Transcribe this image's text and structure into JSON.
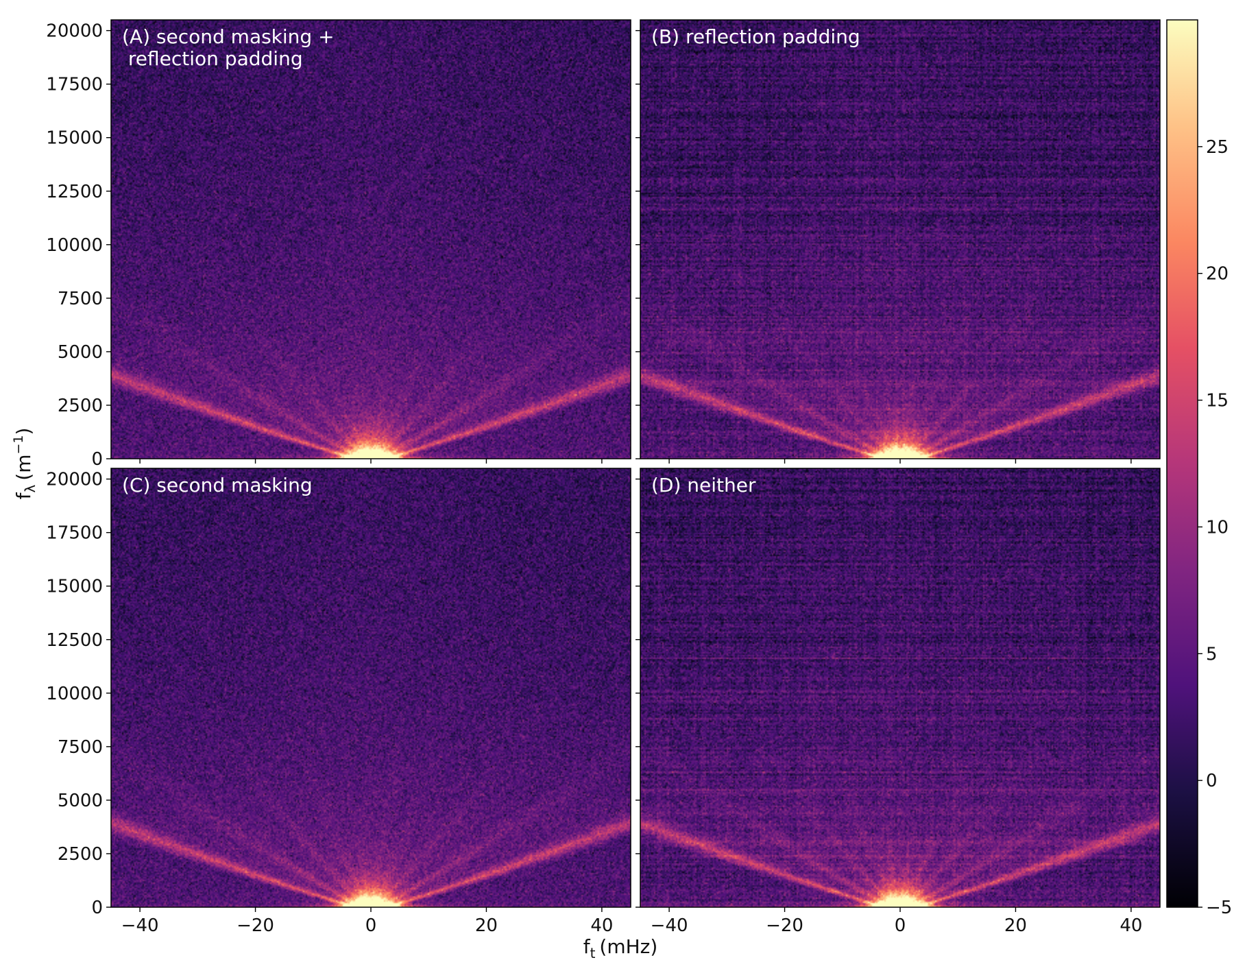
{
  "colors": {
    "background": "#ffffff",
    "panel_frame": "#000000",
    "panel_label_text": "#ffffff",
    "colormap": "magma"
  },
  "chart_data": {
    "type": "heatmap",
    "title": "",
    "xlabel": "f",
    "xlabel_sub": "t",
    "xlabel_unit": "(mHz)",
    "ylabel": "f",
    "ylabel_sub": "λ",
    "ylabel_unit": "(m",
    "ylabel_sup": "−1",
    "ylabel_close": ")",
    "xlim": [
      -45,
      45
    ],
    "ylim": [
      0,
      20500
    ],
    "xticks": [
      -40,
      -20,
      0,
      20,
      40
    ],
    "xtick_labels": [
      "−40",
      "−20",
      "0",
      "20",
      "40"
    ],
    "yticks": [
      0,
      2500,
      5000,
      7500,
      10000,
      12500,
      15000,
      17500,
      20000
    ],
    "ytick_labels": [
      "0",
      "2500",
      "5000",
      "7500",
      "10000",
      "12500",
      "15000",
      "17500",
      "20000"
    ],
    "colorbar": {
      "colormap": "magma",
      "range": [
        -5,
        30
      ],
      "ticks": [
        -5,
        0,
        5,
        10,
        15,
        20,
        25
      ],
      "tick_labels": [
        "−5",
        "0",
        "5",
        "10",
        "15",
        "20",
        "25"
      ]
    },
    "grid": false,
    "panels": [
      {
        "id": "A",
        "label_lines": [
          "(A) second masking +",
          " reflection padding"
        ],
        "striping": false
      },
      {
        "id": "B",
        "label_lines": [
          "(B) reflection padding"
        ],
        "striping": true
      },
      {
        "id": "C",
        "label_lines": [
          "(C) second masking"
        ],
        "striping": false
      },
      {
        "id": "D",
        "label_lines": [
          "(D) neither"
        ],
        "striping": true
      }
    ]
  }
}
